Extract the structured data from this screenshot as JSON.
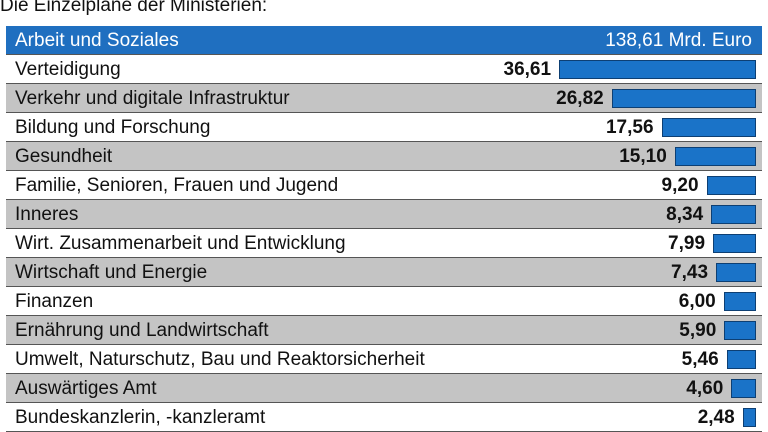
{
  "header": {
    "title": "Die Einzelpläne der Ministerien:"
  },
  "chart_data": {
    "type": "bar",
    "orientation": "horizontal",
    "unit": "Mrd. Euro",
    "categories": [
      "Arbeit und Soziales",
      "Verteidigung",
      "Verkehr und digitale Infrastruktur",
      "Bildung und Forschung",
      "Gesundheit",
      "Familie, Senioren, Frauen und Jugend",
      "Inneres",
      "Wirt. Zusammenarbeit und Entwicklung",
      "Wirtschaft und Energie",
      "Finanzen",
      "Ernährung und Landwirtschaft",
      "Umwelt, Naturschutz, Bau und Reaktorsicherheit",
      "Auswärtiges Amt",
      "Bundeskanzlerin, -kanzleramt"
    ],
    "values": [
      138.61,
      36.61,
      26.82,
      17.56,
      15.1,
      9.2,
      8.34,
      7.99,
      7.43,
      6.0,
      5.9,
      5.46,
      4.6,
      2.48
    ],
    "value_labels": [
      "138,61 Mrd. Euro",
      "36,61",
      "26,82",
      "17,56",
      "15,10",
      "9,20",
      "8,34",
      "7,99",
      "7,43",
      "6,00",
      "5,90",
      "5,46",
      "4,60",
      "2,48"
    ],
    "colors": {
      "bar": "#1a73c8",
      "top_row": "#1f6fc0",
      "stripe": "#c4c4c4"
    }
  }
}
